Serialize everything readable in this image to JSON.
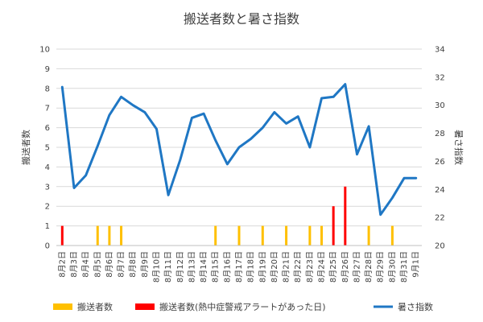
{
  "chart_data": {
    "type": "bar",
    "title": "搬送者数と暑さ指数",
    "ylabel_left": "搬送者数",
    "ylabel_right": "暑さ指数",
    "ylim_left": [
      0,
      10
    ],
    "ylim_right": [
      20,
      34
    ],
    "yticks_left": [
      "0",
      "1",
      "2",
      "3",
      "4",
      "5",
      "6",
      "7",
      "8",
      "9",
      "10"
    ],
    "yticks_right": [
      "20",
      "22",
      "24",
      "26",
      "28",
      "30",
      "32",
      "34"
    ],
    "grid": true,
    "legend_position": "bottom",
    "categories": [
      "8月2日",
      "8月3日",
      "8月4日",
      "8月5日",
      "8月6日",
      "8月7日",
      "8月8日",
      "8月9日",
      "8月10日",
      "8月11日",
      "8月12日",
      "8月13日",
      "8月14日",
      "8月15日",
      "8月16日",
      "8月17日",
      "8月18日",
      "8月19日",
      "8月20日",
      "8月21日",
      "8月22日",
      "8月23日",
      "8月24日",
      "8月25日",
      "8月26日",
      "8月27日",
      "8月28日",
      "8月29日",
      "8月30日",
      "8月31日",
      "9月1日"
    ],
    "series": [
      {
        "name": "搬送者数",
        "kind": "bar",
        "color": "#FFC000",
        "values": [
          0,
          0,
          0,
          1,
          1,
          1,
          0,
          0,
          0,
          0,
          0,
          0,
          0,
          1,
          0,
          1,
          0,
          1,
          0,
          1,
          0,
          1,
          1,
          0,
          0,
          0,
          1,
          0,
          1,
          0,
          0
        ]
      },
      {
        "name": "搬送者数(熱中症警戒アラートがあった日)",
        "kind": "bar",
        "color": "#FF0000",
        "values": [
          1,
          0,
          0,
          0,
          0,
          0,
          0,
          0,
          0,
          0,
          0,
          0,
          0,
          0,
          0,
          0,
          0,
          0,
          0,
          0,
          0,
          0,
          0,
          2,
          3,
          0,
          0,
          0,
          0,
          0,
          0
        ]
      },
      {
        "name": "暑さ指数",
        "kind": "line",
        "axis": "right",
        "color": "#1F77C4",
        "values": [
          31.3,
          24.1,
          25.0,
          27.1,
          29.3,
          30.6,
          30.0,
          29.5,
          28.3,
          23.6,
          26.1,
          29.1,
          29.4,
          27.5,
          25.8,
          27.0,
          27.6,
          28.4,
          29.5,
          28.7,
          29.2,
          27.0,
          30.5,
          30.6,
          31.5,
          26.5,
          28.5,
          22.2,
          23.4,
          24.8,
          24.8
        ]
      }
    ]
  }
}
